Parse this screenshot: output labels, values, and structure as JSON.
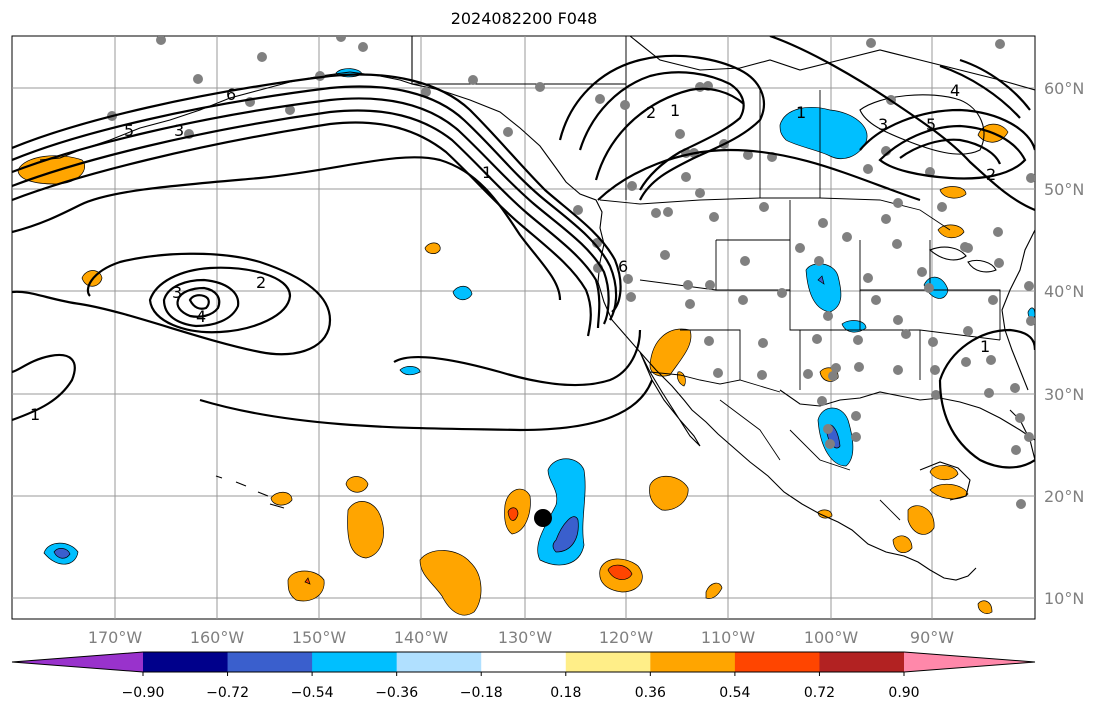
{
  "title": "2024082200 F048",
  "map": {
    "lon_labels": [
      "170°W",
      "160°W",
      "150°W",
      "140°W",
      "130°W",
      "120°W",
      "110°W",
      "100°W",
      "90°W"
    ],
    "lat_labels": [
      "60°N",
      "50°N",
      "40°N",
      "30°N",
      "20°N",
      "10°N"
    ],
    "contour_labels": [
      "1",
      "2",
      "3",
      "4",
      "5",
      "6"
    ],
    "storm_marker": {
      "lon": "128.5°W",
      "lat": "17.7°N"
    }
  },
  "colorbar": {
    "tick_labels": [
      "−0.90",
      "−0.72",
      "−0.54",
      "−0.36",
      "−0.18",
      "0.18",
      "0.36",
      "0.54",
      "0.72",
      "0.90"
    ],
    "colors": [
      "#9932cc",
      "#00008b",
      "#3a5fcd",
      "#00bfff",
      "#b0e0ff",
      "#ffffff",
      "#ffee88",
      "#ffa500",
      "#ff4500",
      "#b22222",
      "#ff88aa"
    ]
  }
}
